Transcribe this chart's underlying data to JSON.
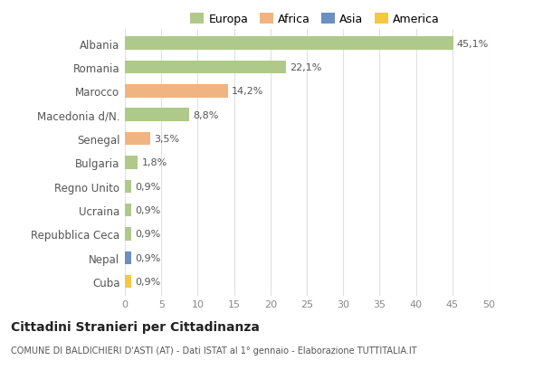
{
  "countries": [
    "Albania",
    "Romania",
    "Marocco",
    "Macedonia d/N.",
    "Senegal",
    "Bulgaria",
    "Regno Unito",
    "Ucraina",
    "Repubblica Ceca",
    "Nepal",
    "Cuba"
  ],
  "values": [
    45.1,
    22.1,
    14.2,
    8.8,
    3.5,
    1.8,
    0.9,
    0.9,
    0.9,
    0.9,
    0.9
  ],
  "labels": [
    "45,1%",
    "22,1%",
    "14,2%",
    "8,8%",
    "3,5%",
    "1,8%",
    "0,9%",
    "0,9%",
    "0,9%",
    "0,9%",
    "0,9%"
  ],
  "colors": [
    "#aec98a",
    "#aec98a",
    "#f0b482",
    "#aec98a",
    "#f0b482",
    "#aec98a",
    "#aec98a",
    "#aec98a",
    "#aec98a",
    "#6b8fbe",
    "#f5c842"
  ],
  "legend_labels": [
    "Europa",
    "Africa",
    "Asia",
    "America"
  ],
  "legend_colors": [
    "#aec98a",
    "#f0b482",
    "#6b8fbe",
    "#f5c842"
  ],
  "xlim": [
    0,
    50
  ],
  "xticks": [
    0,
    5,
    10,
    15,
    20,
    25,
    30,
    35,
    40,
    45,
    50
  ],
  "title": "Cittadini Stranieri per Cittadinanza",
  "subtitle": "COMUNE DI BALDICHIERI D'ASTI (AT) - Dati ISTAT al 1° gennaio - Elaborazione TUTTITALIA.IT",
  "bg_color": "#ffffff",
  "grid_color": "#e0e0e0",
  "bar_height": 0.55
}
